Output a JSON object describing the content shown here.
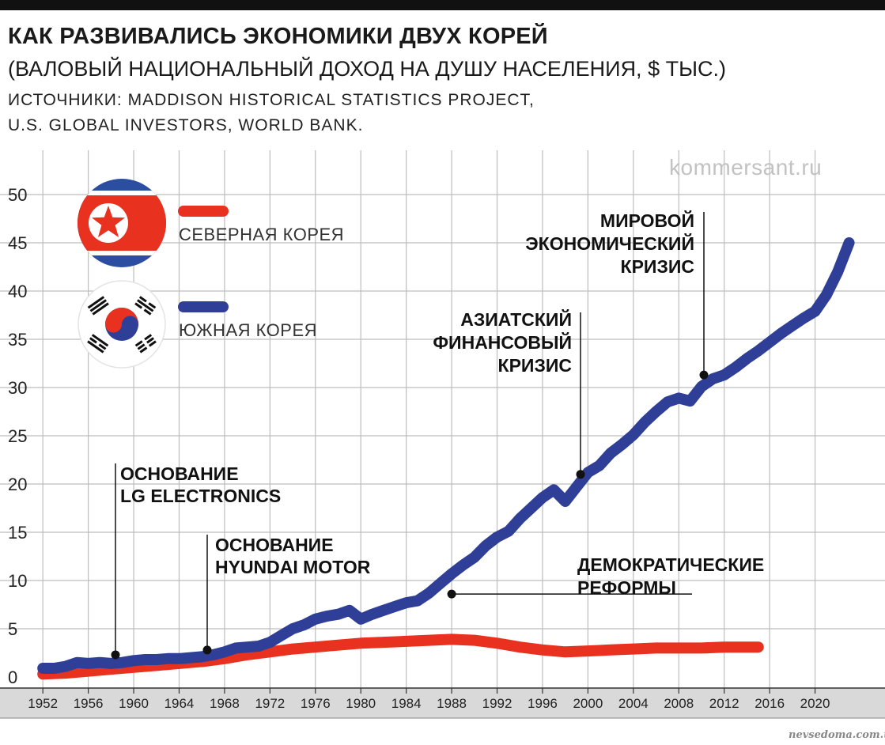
{
  "header": {
    "title": "КАК РАЗВИВАЛИСЬ ЭКОНОМИКИ ДВУХ КОРЕЙ",
    "subtitle": "(ВАЛОВЫЙ НАЦИОНАЛЬНЫЙ ДОХОД НА ДУШУ НАСЕЛЕНИЯ, $ ТЫС.)",
    "source_line1": "ИСТОЧНИКИ: MADDISON HISTORICAL STATISTICS PROJECT,",
    "source_line2": "U.S. GLOBAL INVESTORS, WORLD BANK."
  },
  "watermark": "kommersant.ru",
  "footer_mark": "nevsedoma.com.ua",
  "colors": {
    "north": "#e8311f",
    "south": "#2f3f97",
    "axis_band": "#d9d9d9",
    "grid": "#bdbdbd"
  },
  "legend": {
    "north_label": "СЕВЕРНАЯ КОРЕЯ",
    "south_label": "ЮЖНАЯ КОРЕЯ",
    "north_icon": "north-korea-flag-icon",
    "south_icon": "south-korea-flag-icon"
  },
  "chart_data": {
    "type": "line",
    "xlim": [
      1951.5,
      2024
    ],
    "ylim": [
      0,
      50
    ],
    "y_ticks": [
      0,
      5,
      10,
      15,
      20,
      25,
      30,
      35,
      40,
      45,
      50
    ],
    "x_ticks": [
      1952,
      1956,
      1960,
      1964,
      1968,
      1972,
      1976,
      1980,
      1984,
      1988,
      1992,
      1996,
      2000,
      2004,
      2008,
      2012,
      2016,
      2020
    ],
    "grid": true,
    "series": [
      {
        "name": "ЮЖНАЯ КОРЕЯ",
        "color": "#2f3f97",
        "x": [
          1952,
          1953,
          1954,
          1955,
          1956,
          1957,
          1958,
          1959,
          1960,
          1961,
          1962,
          1963,
          1964,
          1965,
          1966,
          1967,
          1968,
          1969,
          1970,
          1971,
          1972,
          1973,
          1974,
          1975,
          1976,
          1977,
          1978,
          1979,
          1980,
          1981,
          1982,
          1983,
          1984,
          1985,
          1986,
          1987,
          1988,
          1989,
          1990,
          1991,
          1992,
          1993,
          1994,
          1995,
          1996,
          1997,
          1998,
          1999,
          2000,
          2001,
          2002,
          2003,
          2004,
          2005,
          2006,
          2007,
          2008,
          2009,
          2010,
          2011,
          2012,
          2013,
          2014,
          2015,
          2016,
          2017,
          2018,
          2019,
          2020,
          2021,
          2022,
          2023
        ],
        "y": [
          0.9,
          0.9,
          1.1,
          1.5,
          1.4,
          1.5,
          1.4,
          1.5,
          1.7,
          1.8,
          1.8,
          1.9,
          1.9,
          2.0,
          2.1,
          2.3,
          2.6,
          3.0,
          3.1,
          3.2,
          3.6,
          4.3,
          5.0,
          5.4,
          6.0,
          6.3,
          6.5,
          6.9,
          6.0,
          6.5,
          6.9,
          7.3,
          7.7,
          7.9,
          8.7,
          9.7,
          10.7,
          11.6,
          12.4,
          13.6,
          14.5,
          15.1,
          16.4,
          17.5,
          18.6,
          19.4,
          18.2,
          19.7,
          21.2,
          21.9,
          23.2,
          24.1,
          25.1,
          26.4,
          27.5,
          28.5,
          28.9,
          28.6,
          30.1,
          30.9,
          31.3,
          32.1,
          33.0,
          33.8,
          34.7,
          35.6,
          36.4,
          37.2,
          37.9,
          39.6,
          42.0,
          45.0
        ]
      },
      {
        "name": "СЕВЕРНАЯ КОРЕЯ",
        "color": "#e8311f",
        "x": [
          1952,
          1954,
          1956,
          1958,
          1960,
          1962,
          1964,
          1966,
          1968,
          1970,
          1972,
          1974,
          1976,
          1978,
          1980,
          1982,
          1984,
          1986,
          1988,
          1990,
          1992,
          1994,
          1996,
          1998,
          2000,
          2002,
          2004,
          2006,
          2008,
          2010,
          2012,
          2014,
          2015
        ],
        "y": [
          0.3,
          0.4,
          0.6,
          0.8,
          1.0,
          1.2,
          1.4,
          1.6,
          1.9,
          2.3,
          2.6,
          2.9,
          3.1,
          3.3,
          3.5,
          3.6,
          3.7,
          3.8,
          3.9,
          3.8,
          3.5,
          3.1,
          2.8,
          2.6,
          2.7,
          2.8,
          2.9,
          3.0,
          3.0,
          3.0,
          3.1,
          3.1,
          3.1
        ]
      }
    ],
    "annotations": [
      {
        "id": "lg",
        "lines": [
          "ОСНОВАНИЕ",
          "LG ELECTRONICS"
        ],
        "x": 1958,
        "y": 2.3
      },
      {
        "id": "hyundai",
        "lines": [
          "ОСНОВАНИЕ",
          "HYUNDAI MOTOR"
        ],
        "x": 1967,
        "y": 2.8
      },
      {
        "id": "democ",
        "lines": [
          "ДЕМОКРАТИЧЕСКИЕ",
          "РЕФОРМЫ"
        ],
        "x": 1988,
        "y": 8.6
      },
      {
        "id": "asian",
        "lines": [
          "АЗИАТСКИЙ",
          "ФИНАНСОВЫЙ",
          "КРИЗИС"
        ],
        "x": 1998,
        "y": 21.0
      },
      {
        "id": "world",
        "lines": [
          "МИРОВОЙ",
          "ЭКОНОМИЧЕСКИЙ",
          "КРИЗИС"
        ],
        "x": 2009,
        "y": 31.3
      }
    ]
  }
}
